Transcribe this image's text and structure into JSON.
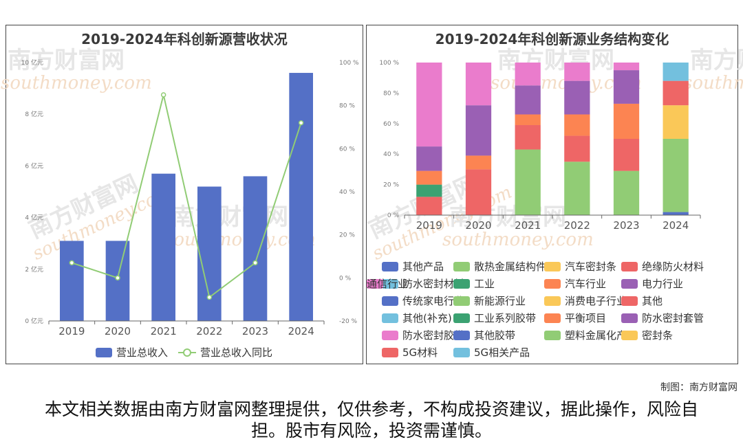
{
  "watermark": {
    "brand": "南方财富网",
    "domain": "southmoney.com"
  },
  "credit": "制图：南方财富网",
  "disclaimer": "本文相关数据由南方财富网整理提供，仅供参考，不构成投资建议，据此操作，风险自担。股市有风险，投资需谨慎。",
  "chart_data": [
    {
      "type": "bar",
      "title": "2019-2024年科创新源营收状况",
      "categories": [
        "2019",
        "2020",
        "2021",
        "2022",
        "2023",
        "2024"
      ],
      "y_ticks": [
        "0 亿元",
        "2 亿元",
        "4 亿元",
        "6 亿元",
        "8 亿元",
        "10 亿元"
      ],
      "y2_ticks": [
        "-20 %",
        "0 %",
        "20 %",
        "40 %",
        "60 %",
        "80 %",
        "100 %"
      ],
      "ylim": [
        0,
        10
      ],
      "y2lim": [
        -20,
        100
      ],
      "series": [
        {
          "name": "营业总收入",
          "type": "bar",
          "axis": "left",
          "color": "#5470c6",
          "values": [
            3.1,
            3.1,
            5.7,
            5.2,
            5.6,
            9.6
          ]
        },
        {
          "name": "营业总收入同比",
          "type": "line",
          "axis": "right",
          "color": "#91cc75",
          "values": [
            7,
            0,
            85,
            -9,
            7,
            72
          ]
        }
      ],
      "legend_position": "bottom"
    },
    {
      "type": "bar",
      "stacked": true,
      "title": "2019-2024年科创新源业务结构变化",
      "categories": [
        "2019",
        "2020",
        "2021",
        "2022",
        "2023",
        "2024"
      ],
      "y_ticks": [
        "0 %",
        "20 %",
        "40 %",
        "60 %",
        "80 %",
        "100 %"
      ],
      "ylim": [
        0,
        100
      ],
      "series": [
        {
          "name": "其他产品",
          "color": "#5470c6",
          "values": [
            0,
            0,
            0,
            0,
            0,
            2
          ]
        },
        {
          "name": "散热金属结构件",
          "color": "#91cc75",
          "values": [
            0,
            0,
            0,
            0,
            0,
            0
          ]
        },
        {
          "name": "汽车密封条",
          "color": "#fac858",
          "values": [
            0,
            0,
            0,
            0,
            0,
            0
          ]
        },
        {
          "name": "绝缘防火材料",
          "color": "#ee6666",
          "values": [
            12,
            0,
            0,
            0,
            0,
            0
          ]
        },
        {
          "name": "防水密封材料",
          "color": "#73c0de",
          "values": [
            0,
            0,
            0,
            0,
            0,
            0
          ]
        },
        {
          "name": "工业",
          "color": "#3ba272",
          "values": [
            8,
            0,
            0,
            0,
            0,
            0
          ]
        },
        {
          "name": "汽车行业",
          "color": "#fc8452",
          "values": [
            9,
            0,
            0,
            0,
            0,
            0
          ]
        },
        {
          "name": "电力行业",
          "color": "#9a60b4",
          "values": [
            16,
            0,
            0,
            0,
            0,
            0
          ]
        },
        {
          "name": "通信行业",
          "color": "#ea7ccc",
          "values": [
            55,
            0,
            0,
            0,
            0,
            0
          ]
        },
        {
          "name": "传统家电行业",
          "color": "#5470c6",
          "values": [
            0,
            0,
            0,
            0,
            0,
            0
          ]
        },
        {
          "name": "新能源行业",
          "color": "#91cc75",
          "values": [
            0,
            0,
            43,
            35,
            29,
            48
          ]
        },
        {
          "name": "消费电子行业",
          "color": "#fac858",
          "values": [
            0,
            0,
            0,
            0,
            0,
            22
          ]
        },
        {
          "name": "其他",
          "color": "#ee6666",
          "values": [
            0,
            30,
            16,
            17,
            21,
            16
          ]
        },
        {
          "name": "其他(补充)",
          "color": "#73c0de",
          "values": [
            0,
            0,
            0,
            0,
            0,
            12
          ]
        },
        {
          "name": "工业系列胶带",
          "color": "#3ba272",
          "values": [
            0,
            0,
            0,
            0,
            0,
            0
          ]
        },
        {
          "name": "平衡项目",
          "color": "#fc8452",
          "values": [
            0,
            9,
            7,
            14,
            23,
            0
          ]
        },
        {
          "name": "防水密封套管",
          "color": "#9a60b4",
          "values": [
            0,
            33,
            19,
            22,
            22,
            0
          ]
        },
        {
          "name": "防水密封胶带",
          "color": "#ea7ccc",
          "values": [
            0,
            28,
            15,
            12,
            5,
            0
          ]
        },
        {
          "name": "其他胶带",
          "color": "#5470c6",
          "values": [
            0,
            0,
            0,
            0,
            0,
            0
          ]
        },
        {
          "name": "塑料金属化产品",
          "color": "#91cc75",
          "values": [
            0,
            0,
            0,
            0,
            0,
            0
          ]
        },
        {
          "name": "密封条",
          "color": "#fac858",
          "values": [
            0,
            0,
            0,
            0,
            0,
            0
          ]
        },
        {
          "name": "5G材料",
          "color": "#ee6666",
          "values": [
            0,
            0,
            0,
            0,
            0,
            0
          ]
        },
        {
          "name": "5G相关产品",
          "color": "#73c0de",
          "values": [
            0,
            0,
            0,
            0,
            0,
            0
          ]
        }
      ],
      "legend_position": "bottom"
    }
  ]
}
